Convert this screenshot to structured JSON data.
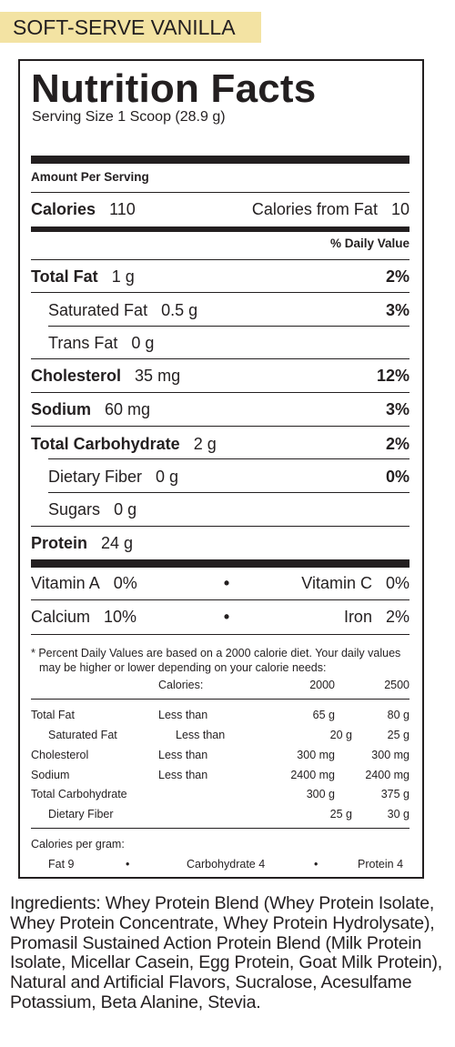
{
  "flavor": "SOFT-SERVE VANILLA",
  "label": {
    "title": "Nutrition Facts",
    "serving_size": "Serving Size 1 Scoop (28.9 g)",
    "amount_per_serving": "Amount Per Serving",
    "calories_label": "Calories",
    "calories_value": "110",
    "calories_fat_label": "Calories from Fat",
    "calories_fat_value": "10",
    "daily_value_header": "% Daily Value",
    "nutrients": [
      {
        "name": "Total Fat",
        "amount": "1 g",
        "dv": "2%"
      },
      {
        "name": "Saturated Fat",
        "amount": "0.5 g",
        "dv": "3%"
      },
      {
        "name": "Trans Fat",
        "amount": "0 g",
        "dv": ""
      },
      {
        "name": "Cholesterol",
        "amount": "35 mg",
        "dv": "12%"
      },
      {
        "name": "Sodium",
        "amount": "60 mg",
        "dv": "3%"
      },
      {
        "name": "Total Carbohydrate",
        "amount": "2 g",
        "dv": "2%"
      },
      {
        "name": "Dietary Fiber",
        "amount": "0 g",
        "dv": "0%"
      },
      {
        "name": "Sugars",
        "amount": "0 g",
        "dv": ""
      },
      {
        "name": "Protein",
        "amount": "24 g",
        "dv": ""
      }
    ],
    "vitamins": [
      {
        "left_name": "Vitamin A",
        "left_value": "0%",
        "bullet": "•",
        "right_name": "Vitamin C",
        "right_value": "0%"
      },
      {
        "left_name": "Calcium",
        "left_value": "10%",
        "bullet": "•",
        "right_name": "Iron",
        "right_value": "2%"
      }
    ],
    "footnote_line1": "* Percent Daily Values are based on a 2000 calorie diet. Your daily values",
    "footnote_line2": "may be higher or lower depending on your calorie needs:",
    "dv_table": {
      "header": {
        "calories_label": "Calories:",
        "col1": "2000",
        "col2": "2500"
      },
      "rows": [
        {
          "name": "Total Fat",
          "qual": "Less than",
          "v1": "65 g",
          "v2": "80 g"
        },
        {
          "name": "Saturated Fat",
          "qual": "Less than",
          "v1": "20 g",
          "v2": "25 g"
        },
        {
          "name": "Cholesterol",
          "qual": "Less than",
          "v1": "300 mg",
          "v2": "300 mg"
        },
        {
          "name": "Sodium",
          "qual": "Less than",
          "v1": "2400 mg",
          "v2": "2400 mg"
        },
        {
          "name": "Total Carbohydrate",
          "qual": "",
          "v1": "300 g",
          "v2": "375 g"
        },
        {
          "name": "Dietary Fiber",
          "qual": "",
          "v1": "25 g",
          "v2": "30 g"
        }
      ]
    },
    "calories_per_gram_label": "Calories per gram:",
    "calories_per_gram": {
      "fat": "Fat  9",
      "carb": "Carbohydrate  4",
      "protein": "Protein  4",
      "bullet": "•"
    }
  },
  "ingredients": {
    "label": "Ingredients:",
    "text": " Whey Protein Blend (Whey Protein Isolate, Whey Protein Concentrate, Whey Protein Hydrolysate), Promasil Sustained Action Protein Blend (Milk Protein Isolate, Micellar Casein, Egg Protein, Goat Milk Protein), Natural and Artificial Flavors, Sucralose, Acesulfame Potassium, Beta Alanine, Stevia."
  }
}
